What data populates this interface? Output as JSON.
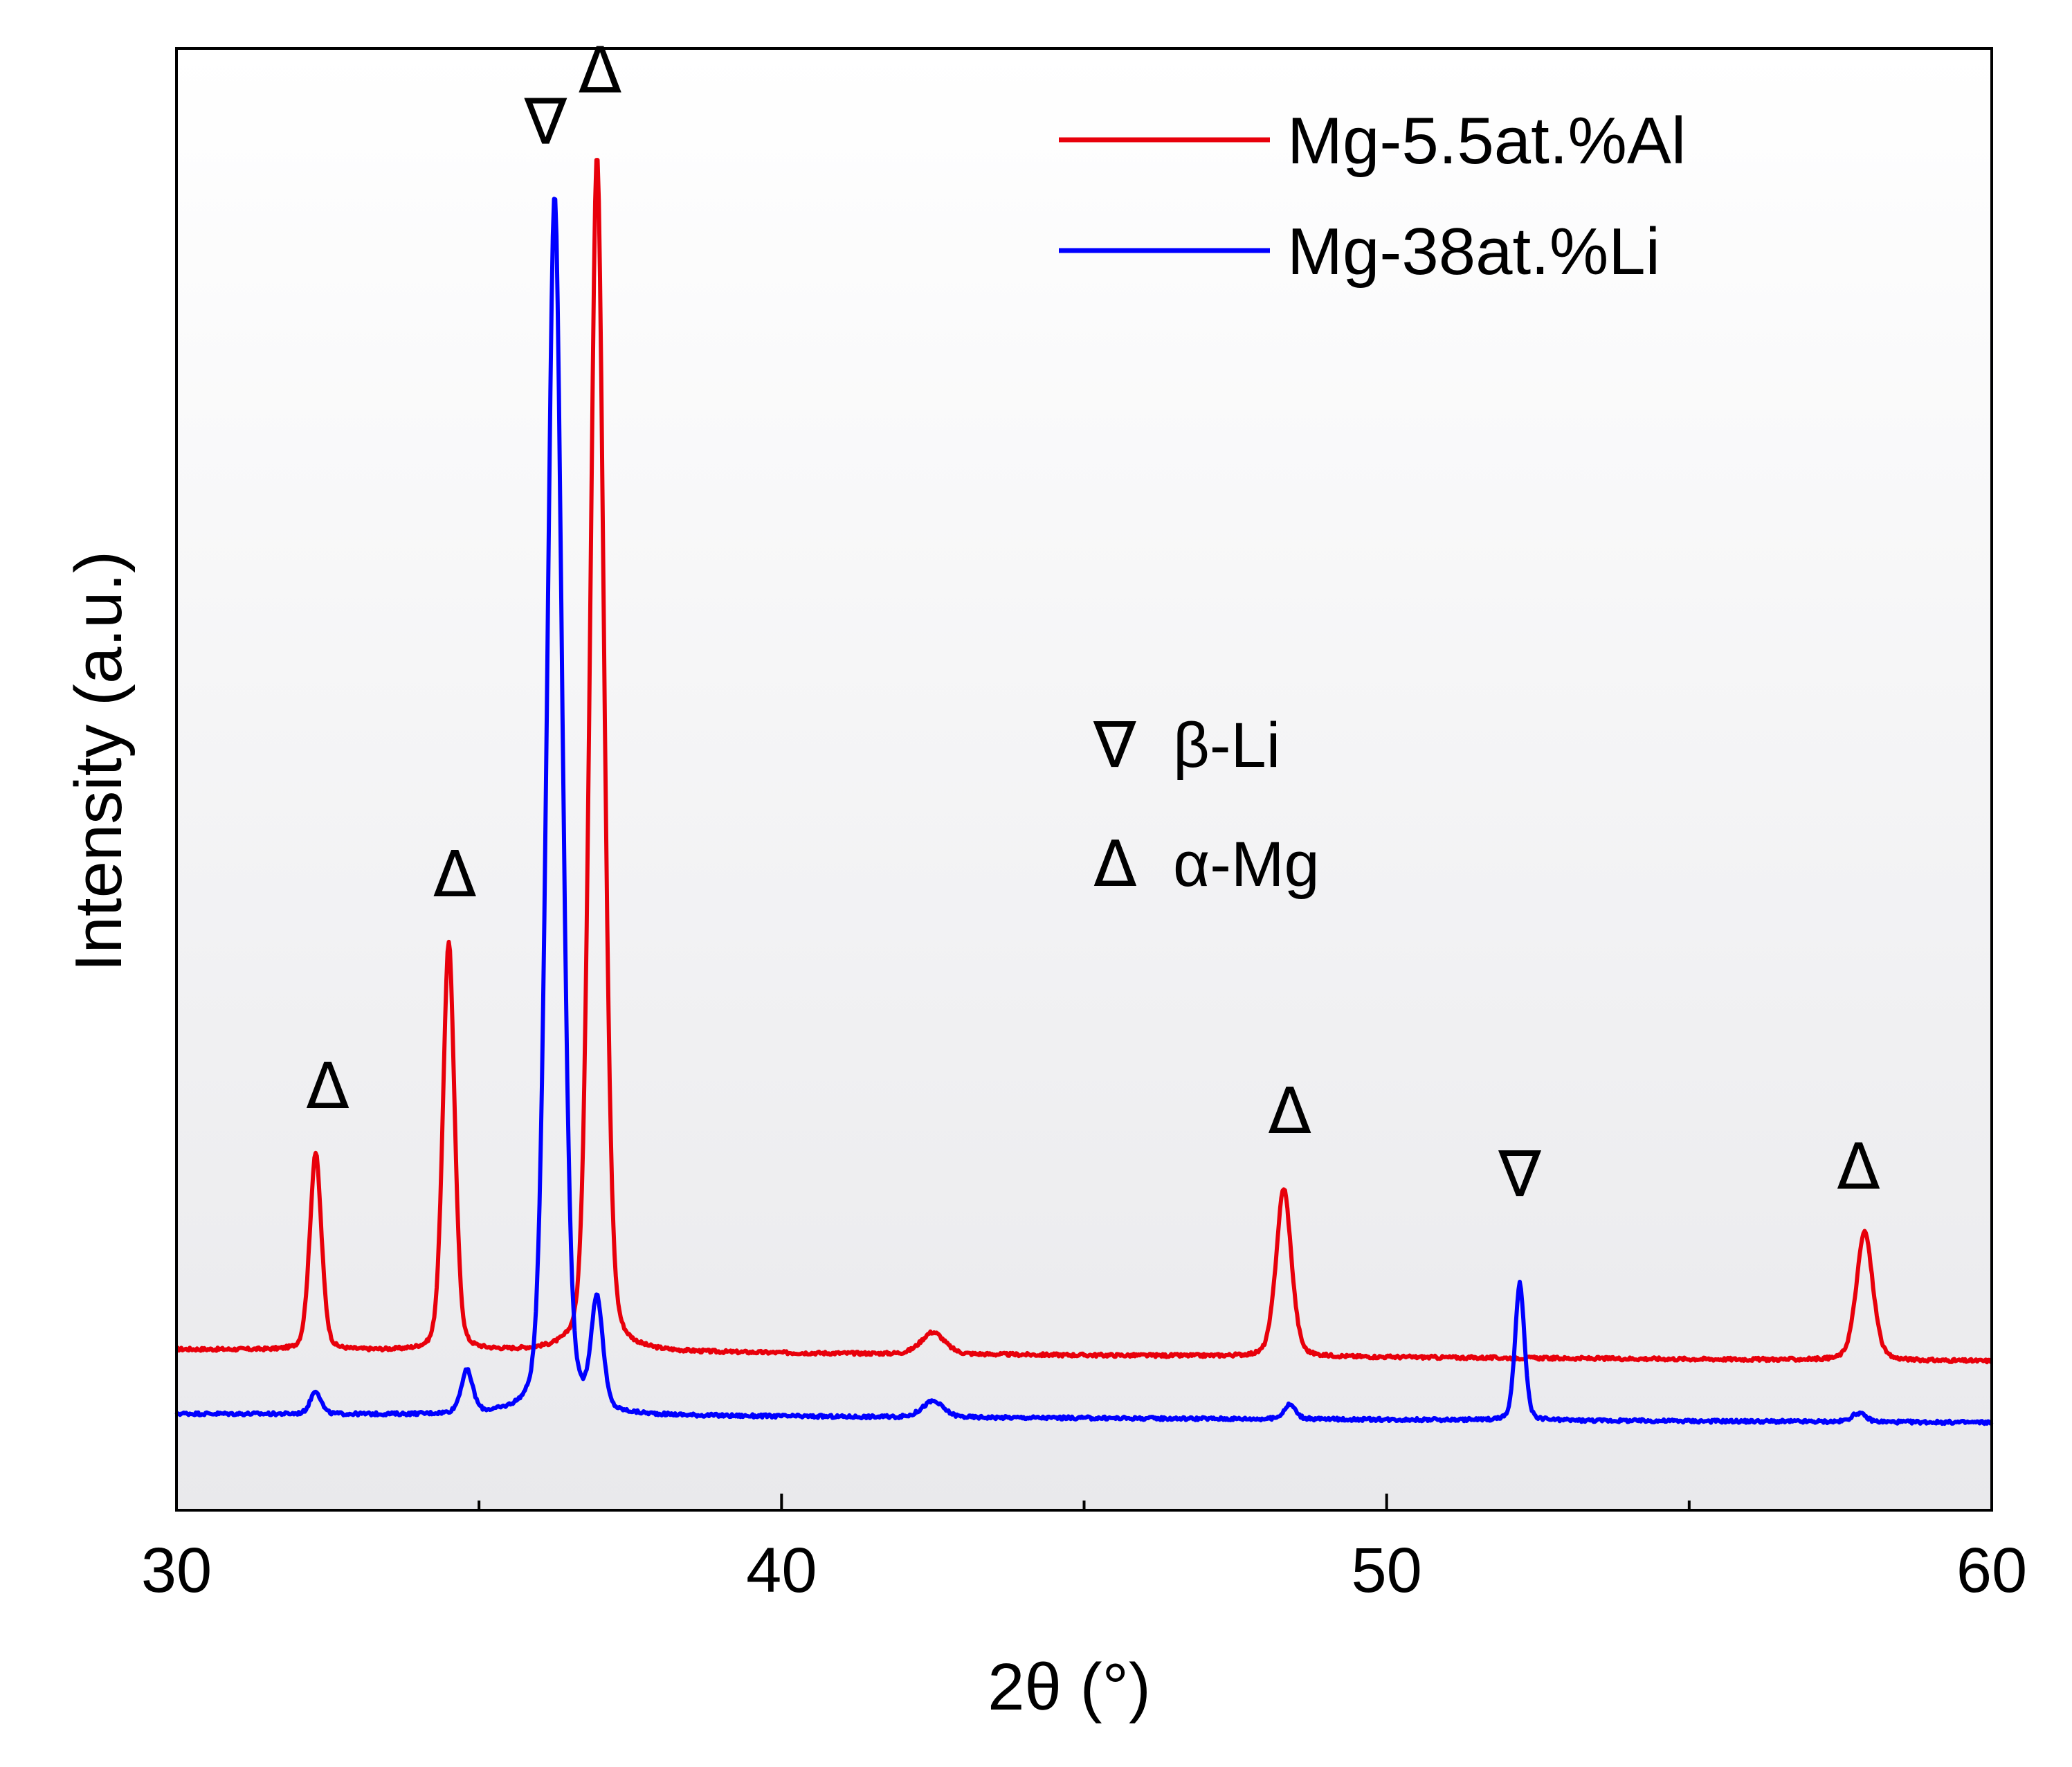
{
  "chart_data": {
    "type": "line",
    "title": "",
    "xlabel": "2θ (°)",
    "ylabel": "Intensity (a.u.)",
    "xlim": [
      30,
      60
    ],
    "ylim": [
      0,
      100
    ],
    "x_ticks": [
      30,
      40,
      50,
      60
    ],
    "x_minor_ticks": [
      35,
      45,
      55
    ],
    "y_ticks_shown": false,
    "grid": false,
    "legend_position": "top-right",
    "series": [
      {
        "name": "Mg-5.5at.%Al",
        "color": "#e8000b",
        "baseline_start": 11.0,
        "baseline_end": 10.2,
        "peaks": [
          {
            "x": 32.3,
            "height": 13.5,
            "width": 0.1
          },
          {
            "x": 34.5,
            "height": 28.0,
            "width": 0.1
          },
          {
            "x": 36.95,
            "height": 82.0,
            "width": 0.12
          },
          {
            "x": 42.5,
            "height": 1.5,
            "width": 0.2
          },
          {
            "x": 48.3,
            "height": 11.5,
            "width": 0.13
          },
          {
            "x": 57.9,
            "height": 8.8,
            "width": 0.14
          }
        ]
      },
      {
        "name": "Mg-38at.%Li",
        "color": "#0000ff",
        "baseline_start": 6.6,
        "baseline_end": 6.0,
        "peaks": [
          {
            "x": 32.3,
            "height": 1.6,
            "width": 0.09
          },
          {
            "x": 34.8,
            "height": 2.9,
            "width": 0.1
          },
          {
            "x": 36.25,
            "height": 83.5,
            "width": 0.13
          },
          {
            "x": 36.95,
            "height": 7.5,
            "width": 0.1
          },
          {
            "x": 42.5,
            "height": 1.1,
            "width": 0.18
          },
          {
            "x": 48.4,
            "height": 1.0,
            "width": 0.1
          },
          {
            "x": 52.2,
            "height": 9.4,
            "width": 0.08
          },
          {
            "x": 57.8,
            "height": 0.6,
            "width": 0.12
          }
        ]
      }
    ],
    "annotations": [
      {
        "symbol": "∇",
        "x": 36.1,
        "y": 93.5
      },
      {
        "symbol": "Δ",
        "x": 37.0,
        "y": 97.0
      },
      {
        "symbol": "Δ",
        "x": 34.6,
        "y": 42.0
      },
      {
        "symbol": "Δ",
        "x": 32.5,
        "y": 27.5
      },
      {
        "symbol": "Δ",
        "x": 48.4,
        "y": 25.8
      },
      {
        "symbol": "∇",
        "x": 52.2,
        "y": 21.5
      },
      {
        "symbol": "Δ",
        "x": 57.8,
        "y": 22.0
      }
    ],
    "phase_key": [
      {
        "symbol": "∇",
        "label": "β-Li"
      },
      {
        "symbol": "Δ",
        "label": "α-Mg"
      }
    ]
  }
}
